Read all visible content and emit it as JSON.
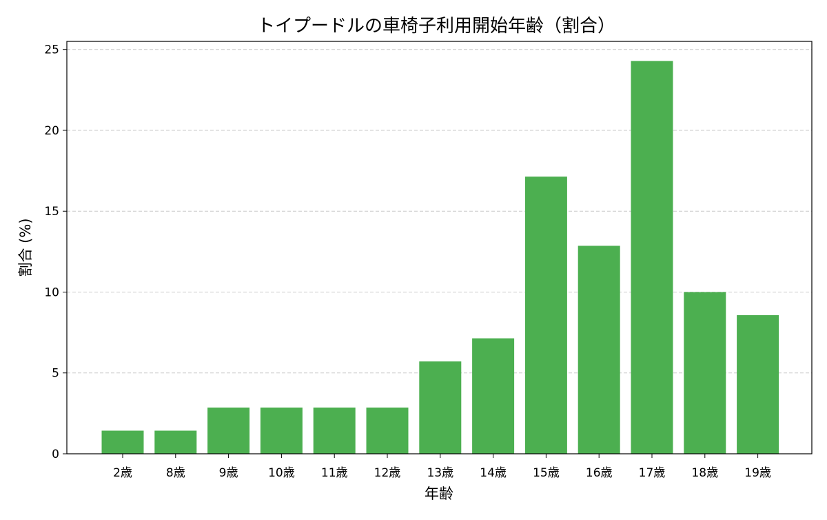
{
  "chart_data": {
    "type": "bar",
    "title": "トイプードルの車椅子利用開始年齢（割合）",
    "xlabel": "年齢",
    "ylabel": "割合 (%)",
    "categories": [
      "2歳",
      "8歳",
      "9歳",
      "10歳",
      "11歳",
      "12歳",
      "13歳",
      "14歳",
      "15歳",
      "16歳",
      "17歳",
      "18歳",
      "19歳"
    ],
    "values": [
      1.43,
      1.43,
      2.86,
      2.86,
      2.86,
      2.86,
      5.71,
      7.14,
      17.14,
      12.86,
      24.29,
      10.0,
      8.57
    ],
    "ylim": [
      0,
      25.5
    ],
    "yticks": [
      0,
      5,
      10,
      15,
      20,
      25
    ],
    "grid": "y-dashed",
    "bar_color": "#4caf50",
    "grid_color": "#c8c8c8"
  }
}
